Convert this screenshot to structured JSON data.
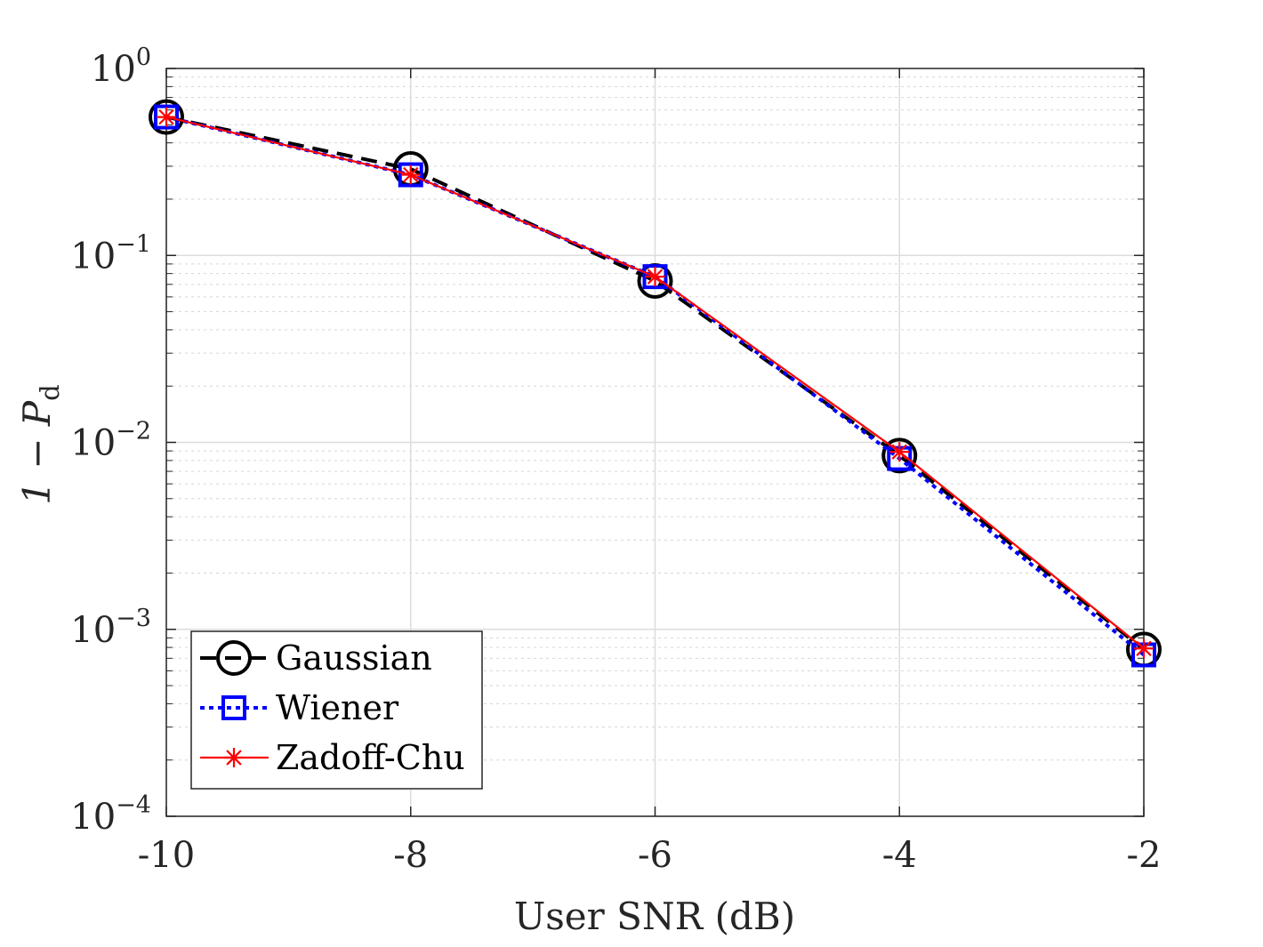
{
  "chart_data": {
    "type": "line",
    "xlabel": "User SNR (dB)",
    "ylabel": "1 − P",
    "ylabel_subscript": "d",
    "x": [
      -10,
      -8,
      -6,
      -4,
      -2
    ],
    "x_tick_labels": [
      "-10",
      "-8",
      "-6",
      "-4",
      "-2"
    ],
    "xlim": [
      -10,
      -2
    ],
    "y_scale": "log",
    "ylim": [
      0.0001,
      1
    ],
    "y_tick_base": "10",
    "y_tick_exponents": [
      "0",
      "−1",
      "−2",
      "−3",
      "−4"
    ],
    "grid": "on (major and minor)",
    "legend_placement": "bottom-left",
    "series": [
      {
        "name": "Gaussian",
        "color": "#000000",
        "line_style": "dashed",
        "marker": "circle",
        "values": [
          0.55,
          0.29,
          0.073,
          0.0085,
          0.00078
        ]
      },
      {
        "name": "Wiener",
        "color": "#0000ff",
        "line_style": "dotted",
        "marker": "square",
        "values": [
          0.55,
          0.27,
          0.077,
          0.0082,
          0.00073
        ]
      },
      {
        "name": "Zadoff-Chu",
        "color": "#ff0000",
        "line_style": "solid",
        "marker": "asterisk",
        "values": [
          0.55,
          0.27,
          0.077,
          0.0089,
          0.00079
        ]
      }
    ]
  }
}
